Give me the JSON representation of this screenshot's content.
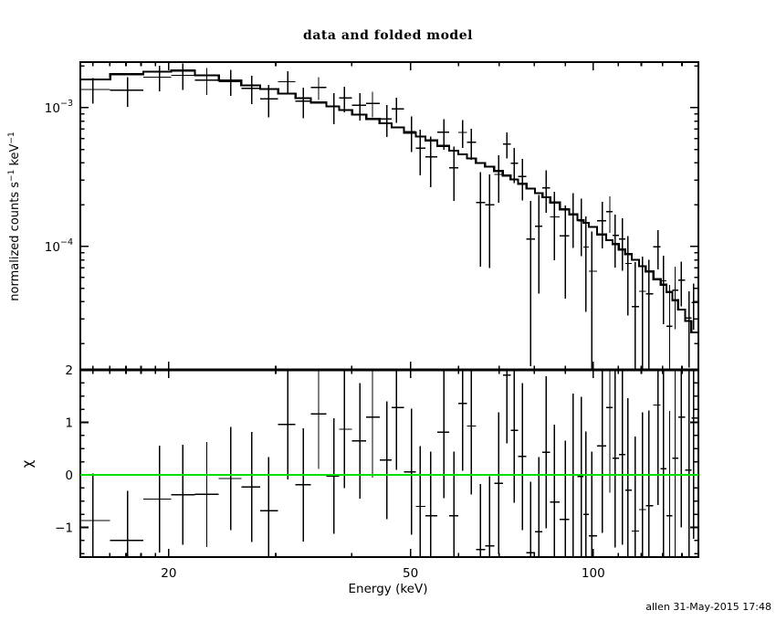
{
  "title": "data and folded model",
  "x_axis_label": "Energy (keV)",
  "y_axis_label": {
    "text1": "normalized counts s",
    "sup1": "−1",
    "text2": " keV",
    "sup2": "−1"
  },
  "chi_axis_label": "χ",
  "watermark": "allen 31-May-2015 17:48",
  "colors": {
    "foreground": "#000000",
    "background": "#ffffff",
    "zero_line": "#00dd00"
  },
  "chart_data": {
    "type": "scatter",
    "subtype": "xspec-spectrum-with-errorbars-folded-model-and-chi-residuals",
    "panels": 2,
    "title": "data and folded model",
    "xlabel": "Energy (keV)",
    "x_axis": {
      "scale": "log",
      "range": [
        14.3,
        149
      ],
      "major_ticks": [
        {
          "label": "20",
          "value": 20
        },
        {
          "label": "50",
          "value": 50
        },
        {
          "label": "100",
          "value": 100
        }
      ],
      "minor_ticks": [
        15,
        16,
        17,
        18,
        19,
        30,
        40,
        60,
        70,
        80,
        90,
        110,
        120,
        130,
        140
      ]
    },
    "main_panel": {
      "ylabel": "normalized counts s-1 keV-1",
      "y_scale": "log",
      "y_range": [
        1.29e-05,
        0.00213
      ],
      "y_major_ticks": [
        {
          "base": "10",
          "exp": "−3",
          "value": 0.001
        },
        {
          "base": "10",
          "exp": "−4",
          "value": 0.0001
        }
      ],
      "y_minor_ticks": [
        0.002,
        0.0009,
        0.0008,
        0.0007,
        0.0006,
        0.0005,
        0.0004,
        0.0003,
        0.0002,
        9e-05,
        8e-05,
        7e-05,
        6e-05,
        5e-05,
        4e-05,
        3e-05,
        2e-05
      ],
      "grid": false,
      "legend": "none"
    },
    "chi_panel": {
      "ylabel": "chi",
      "y_scale": "linear",
      "y_range": [
        -1.565,
        2.0
      ],
      "y_major_ticks": [
        {
          "label": "2",
          "value": 2
        },
        {
          "label": "1",
          "value": 1
        },
        {
          "label": "0",
          "value": 0
        },
        {
          "label": "−1",
          "value": -1
        }
      ],
      "y_minor_ticks": [
        1.75,
        1.5,
        1.25,
        0.75,
        0.5,
        0.25,
        -0.25,
        -0.5,
        -0.75,
        -1.25,
        -1.5
      ],
      "zero_line": {
        "value": 0,
        "color": "#00dd00"
      }
    },
    "bins": {
      "energy_kev": [
        15.0,
        17.1,
        19.3,
        21.1,
        23.1,
        25.3,
        27.4,
        29.2,
        31.4,
        33.3,
        35.3,
        37.4,
        38.9,
        41.3,
        43.3,
        45.7,
        47.4,
        50.2,
        51.9,
        54.0,
        56.8,
        59.0,
        60.9,
        63.0,
        65.2,
        67.5,
        69.9,
        72.1,
        74.1,
        76.4,
        78.9,
        81.4,
        83.6,
        86.3,
        89.9,
        92.7,
        95.6,
        97.2,
        99.5,
        103.5,
        106.5,
        108.7,
        111.7,
        114.1,
        117.3,
        120.6,
        123.5,
        127.8,
        130.5,
        133.6,
        136.4,
        139.6,
        143.9,
        146.3
      ],
      "model": [
        0.0016,
        0.00174,
        0.00182,
        0.00185,
        0.00171,
        0.00157,
        0.00145,
        0.00136,
        0.00126,
        0.00117,
        0.00109,
        0.00102,
        0.00096,
        0.00089,
        0.00083,
        0.00077,
        0.00072,
        0.00066,
        0.00062,
        0.00058,
        0.00053,
        0.00049,
        0.00046,
        0.00043,
        0.0004,
        0.000375,
        0.00035,
        0.000324,
        0.000304,
        0.000283,
        0.000261,
        0.000242,
        0.000226,
        0.000207,
        0.000185,
        0.00017,
        0.000155,
        0.000148,
        0.000138,
        0.000122,
        0.000111,
        0.000104,
        9.5e-05,
        8.8e-05,
        8e-05,
        7.2e-05,
        6.6e-05,
        5.8e-05,
        5.3e-05,
        4.7e-05,
        4.1e-05,
        3.5e-05,
        2.9e-05,
        2.4e-05
      ],
      "data": [
        0.001352,
        0.001338,
        0.001659,
        0.001711,
        0.001581,
        0.001547,
        0.001377,
        0.001154,
        0.001538,
        0.001117,
        0.001397,
        0.001015,
        0.001172,
        0.001042,
        0.001076,
        0.0008295,
        0.00098,
        0.0006715,
        0.0005099,
        0.0004429,
        0.0006639,
        0.0003681,
        0.0006633,
        0.0005628,
        0.0002074,
        0.0001998,
        0.0003302,
        0.0005462,
        0.0003988,
        0.00032,
        0.0001134,
        0.0001401,
        0.0002647,
        0.0001633,
        0.0001193,
        0.00017,
        0.000153,
        9.906e-05,
        6.628e-05,
        0.0001529,
        0.0001779,
        0.0001199,
        0.000113,
        7.537e-05,
        3.677e-05,
        4.748e-05,
        4.556e-05,
        9.958e-05,
        5.649e-05,
        2.655e-05,
        4.843e-05,
        5.721e-05,
        3.054e-05,
        3.95e-05
      ],
      "data_err": [
        0.000285,
        0.000322,
        0.000349,
        0.000366,
        0.000349,
        0.000331,
        0.000316,
        0.000303,
        0.00029,
        0.000277,
        0.000265,
        0.000255,
        0.000244,
        0.000233,
        0.000223,
        0.000213,
        0.000203,
        0.000192,
        0.000184,
        0.000176,
        0.000165,
        0.000156,
        0.00015,
        0.000143,
        0.000136,
        0.00013,
        0.000124,
        0.000117,
        0.000112,
        0.000106,
        9.97e-05,
        9.44e-05,
        8.99e-05,
        8.4e-05,
        7.73e-05,
        7.26e-05,
        6.76e-05,
        6.53e-05,
        6.18e-05,
        5.62e-05,
        5.23e-05,
        4.97e-05,
        4.63e-05,
        4.36e-05,
        4.04e-05,
        3.72e-05,
        3.47e-05,
        3.13e-05,
        2.9e-05,
        2.62e-05,
        2.32e-05,
        2.02e-05,
        1.71e-05,
        1.44e-05
      ],
      "chi": [
        -0.87,
        -1.25,
        -0.46,
        -0.38,
        -0.37,
        -0.07,
        -0.23,
        -0.68,
        0.96,
        -0.19,
        1.16,
        -0.02,
        0.87,
        0.65,
        1.1,
        0.28,
        1.28,
        0.06,
        -0.6,
        -0.78,
        0.81,
        -0.78,
        1.36,
        0.93,
        -1.42,
        -1.35,
        -0.16,
        1.9,
        0.85,
        0.35,
        -1.48,
        -1.08,
        0.43,
        -0.52,
        -0.85,
        0.0,
        -0.03,
        -0.75,
        -1.16,
        0.55,
        1.28,
        0.32,
        0.39,
        -0.29,
        -1.07,
        -0.66,
        -0.59,
        1.33,
        0.12,
        -0.78,
        0.32,
        1.1,
        0.09,
        1.08
      ],
      "chi_err": [
        0.9,
        0.95,
        1.02,
        0.95,
        1.0,
        0.98,
        1.05,
        1.02,
        1.05,
        1.08,
        1.05,
        1.1,
        1.12,
        1.1,
        1.15,
        1.12,
        1.18,
        1.2,
        1.15,
        1.22,
        1.25,
        1.22,
        1.28,
        1.3,
        1.25,
        1.32,
        1.35,
        1.3,
        1.38,
        1.4,
        1.35,
        1.42,
        1.45,
        1.48,
        1.5,
        1.55,
        1.52,
        1.58,
        1.6,
        1.65,
        1.62,
        1.7,
        1.72,
        1.75,
        1.8,
        1.85,
        1.82,
        1.9,
        1.95,
        2.0,
        2.05,
        2.1,
        2.2,
        2.3
      ]
    },
    "annotations": [
      "allen 31-May-2015 17:48"
    ]
  }
}
